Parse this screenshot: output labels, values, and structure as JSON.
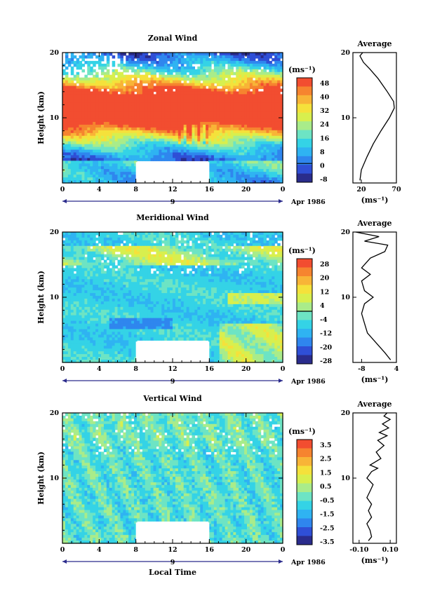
{
  "chart_data": [
    {
      "id": "zonal",
      "type": "heatmap",
      "title": "Zonal Wind",
      "ylabel": "Height (km)",
      "xlabel": "",
      "x_ticks": [
        "0",
        "4",
        "8",
        "12",
        "16",
        "20",
        "0"
      ],
      "y_ticks": [
        "20",
        "10"
      ],
      "date_marker": "9",
      "date_label": "Apr 1986",
      "colorbar": {
        "unit": "(ms⁻¹)",
        "labels": [
          "48",
          "40",
          "32",
          "24",
          "16",
          "8",
          "0",
          "-8"
        ],
        "range": [
          -8,
          52
        ],
        "zero_line": 0
      },
      "field_model": {
        "kind": "jet",
        "jet_center_km": 11.5,
        "jet_max": 70,
        "surface_value": 8
      },
      "gap": {
        "x": [
          8,
          16
        ],
        "y": [
          0.4,
          3.2
        ]
      },
      "average": {
        "title": "Average",
        "xlim": [
          8,
          70
        ],
        "x_ticks": [
          "20",
          "70"
        ],
        "x_tick_values": [
          20,
          70
        ],
        "y_ticks": [
          "20",
          "10"
        ],
        "unit": "(ms⁻¹)",
        "profile": [
          {
            "h": 0.4,
            "v": 18
          },
          {
            "h": 2,
            "v": 20
          },
          {
            "h": 4,
            "v": 28
          },
          {
            "h": 6,
            "v": 37
          },
          {
            "h": 8,
            "v": 48
          },
          {
            "h": 10,
            "v": 60
          },
          {
            "h": 11.5,
            "v": 67
          },
          {
            "h": 12.5,
            "v": 66
          },
          {
            "h": 14,
            "v": 57
          },
          {
            "h": 16,
            "v": 44
          },
          {
            "h": 17.5,
            "v": 32
          },
          {
            "h": 18.5,
            "v": 23
          },
          {
            "h": 19.5,
            "v": 18
          },
          {
            "h": 20,
            "v": 22
          }
        ]
      }
    },
    {
      "id": "meridional",
      "type": "heatmap",
      "title": "Meridional Wind",
      "ylabel": "Height (km)",
      "xlabel": "",
      "x_ticks": [
        "0",
        "4",
        "8",
        "12",
        "16",
        "20",
        "0"
      ],
      "y_ticks": [
        "20",
        "10"
      ],
      "date_marker": "9",
      "date_label": "Apr 1986",
      "colorbar": {
        "unit": "(ms⁻¹)",
        "labels": [
          "28",
          "20",
          "12",
          "4",
          "-4",
          "-12",
          "-20",
          "-28"
        ],
        "range": [
          -32,
          32
        ],
        "zero_line": 0
      },
      "field_model": {
        "kind": "meridional"
      },
      "gap": {
        "x": [
          8,
          16
        ],
        "y": [
          0.4,
          3.2
        ]
      },
      "average": {
        "title": "Average",
        "xlim": [
          -11,
          4
        ],
        "x_ticks": [
          "-8",
          "4"
        ],
        "x_tick_values": [
          -8,
          4
        ],
        "y_ticks": [
          "20",
          "10"
        ],
        "unit": "(ms⁻¹)",
        "profile": [
          {
            "h": 0.4,
            "v": 2
          },
          {
            "h": 1.5,
            "v": 0
          },
          {
            "h": 3,
            "v": -3
          },
          {
            "h": 4.5,
            "v": -6
          },
          {
            "h": 6,
            "v": -7
          },
          {
            "h": 7.5,
            "v": -8
          },
          {
            "h": 9,
            "v": -7
          },
          {
            "h": 10,
            "v": -4
          },
          {
            "h": 11,
            "v": -7
          },
          {
            "h": 12.5,
            "v": -8
          },
          {
            "h": 13.5,
            "v": -5
          },
          {
            "h": 14.5,
            "v": -8
          },
          {
            "h": 16,
            "v": -5
          },
          {
            "h": 17,
            "v": 0
          },
          {
            "h": 18,
            "v": 1
          },
          {
            "h": 18.6,
            "v": -7
          },
          {
            "h": 19.3,
            "v": -2
          },
          {
            "h": 20,
            "v": -10
          }
        ]
      }
    },
    {
      "id": "vertical",
      "type": "heatmap",
      "title": "Vertical Wind",
      "ylabel": "Height (km)",
      "xlabel": "Local Time",
      "x_ticks": [
        "0",
        "4",
        "8",
        "12",
        "16",
        "20",
        "0"
      ],
      "y_ticks": [
        "20",
        "10"
      ],
      "date_marker": "9",
      "date_label": "Apr 1986",
      "colorbar": {
        "unit": "(ms⁻¹)",
        "labels": [
          "3.5",
          "2.5",
          "1.5",
          "0.5",
          "-0.5",
          "-1.5",
          "-2.5",
          "-3.5"
        ],
        "range": [
          -4,
          4
        ],
        "zero_line": null
      },
      "field_model": {
        "kind": "vertical"
      },
      "gap": {
        "x": [
          8,
          16
        ],
        "y": [
          0.4,
          3.2
        ]
      },
      "average": {
        "title": "Average",
        "xlim": [
          -0.14,
          0.14
        ],
        "x_ticks": [
          "-0.10",
          "0.10"
        ],
        "x_tick_values": [
          -0.1,
          0.1
        ],
        "y_ticks": [
          "20",
          "10"
        ],
        "unit": "(ms⁻¹)",
        "profile": [
          {
            "h": 0.4,
            "v": -0.04
          },
          {
            "h": 1,
            "v": -0.02
          },
          {
            "h": 2,
            "v": -0.03
          },
          {
            "h": 3,
            "v": -0.05
          },
          {
            "h": 4,
            "v": -0.02
          },
          {
            "h": 5,
            "v": -0.04
          },
          {
            "h": 6,
            "v": -0.02
          },
          {
            "h": 7,
            "v": -0.05
          },
          {
            "h": 8,
            "v": -0.03
          },
          {
            "h": 9,
            "v": -0.01
          },
          {
            "h": 10,
            "v": -0.05
          },
          {
            "h": 11,
            "v": -0.02
          },
          {
            "h": 11.5,
            "v": 0.02
          },
          {
            "h": 12,
            "v": -0.03
          },
          {
            "h": 13,
            "v": 0.04
          },
          {
            "h": 14,
            "v": 0.01
          },
          {
            "h": 15,
            "v": 0.06
          },
          {
            "h": 15.8,
            "v": 0.02
          },
          {
            "h": 16.5,
            "v": 0.08
          },
          {
            "h": 17,
            "v": 0.03
          },
          {
            "h": 17.7,
            "v": 0.09
          },
          {
            "h": 18.3,
            "v": 0.05
          },
          {
            "h": 19,
            "v": 0.1
          },
          {
            "h": 19.5,
            "v": 0.06
          },
          {
            "h": 20,
            "v": 0.08
          }
        ]
      }
    }
  ],
  "colors": {
    "scale": [
      "#2a2c8c",
      "#2f4fd6",
      "#2f86ee",
      "#2fb3f2",
      "#34d3e6",
      "#6de4c4",
      "#a9ec8a",
      "#d8ef4e",
      "#f5e13b",
      "#f8b437",
      "#f6842f",
      "#f24d30"
    ],
    "peak": "#f0432e",
    "arrow": "#2b2b8c"
  }
}
